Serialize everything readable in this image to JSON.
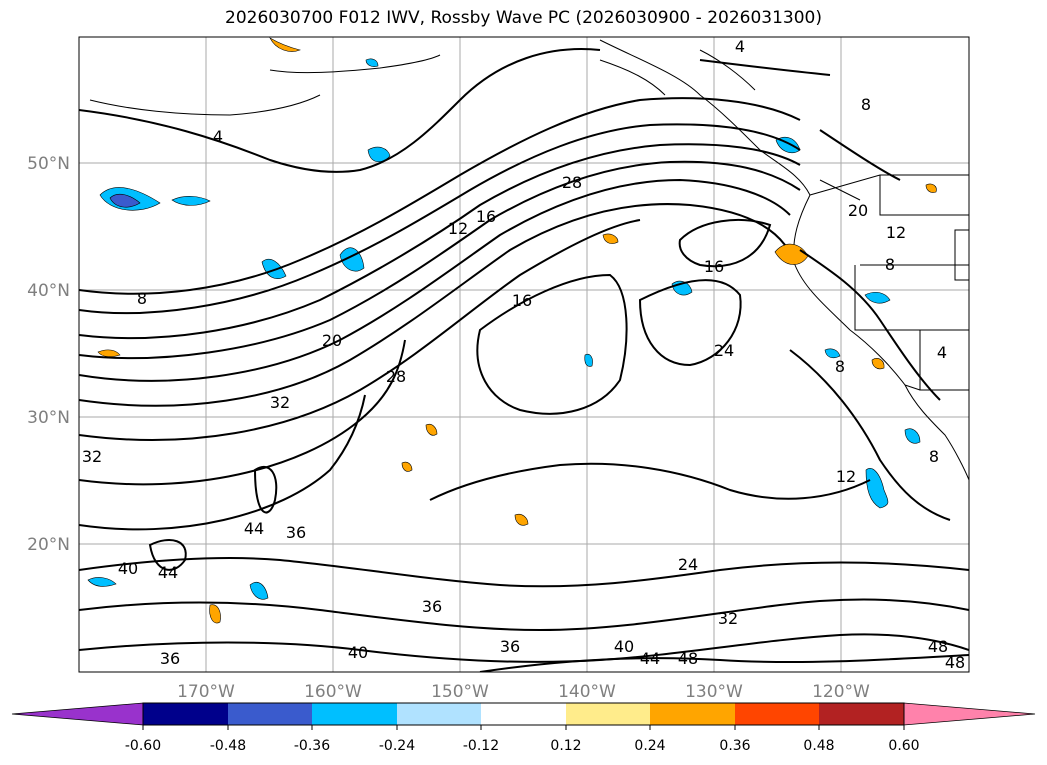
{
  "title": "2026030700 F012 IWV, Rossby Wave PC (2026030900 - 2026031300)",
  "map": {
    "lat_labels": [
      "50°N",
      "40°N",
      "30°N",
      "20°N"
    ],
    "lon_labels": [
      "170°W",
      "160°W",
      "150°W",
      "140°W",
      "130°W",
      "120°W"
    ],
    "contour_labels": [
      "4",
      "4",
      "8",
      "8",
      "8",
      "12",
      "16",
      "16",
      "16",
      "20",
      "20",
      "24",
      "24",
      "28",
      "28",
      "32",
      "32",
      "32",
      "36",
      "36",
      "36",
      "36",
      "40",
      "40",
      "40",
      "44",
      "44",
      "44",
      "48",
      "48",
      "48",
      "8",
      "12",
      "12",
      "4",
      "8"
    ]
  },
  "colorbar": {
    "ticks": [
      "-0.60",
      "-0.48",
      "-0.36",
      "-0.24",
      "-0.12",
      "0.12",
      "0.24",
      "0.36",
      "0.48",
      "0.60"
    ],
    "colors": [
      "#9932cc",
      "#00008b",
      "#3a5bcd",
      "#00bfff",
      "#b0e2ff",
      "#ffffff",
      "#ffec8b",
      "#ffa500",
      "#ff4500",
      "#b22222",
      "#ff82ab"
    ]
  }
}
